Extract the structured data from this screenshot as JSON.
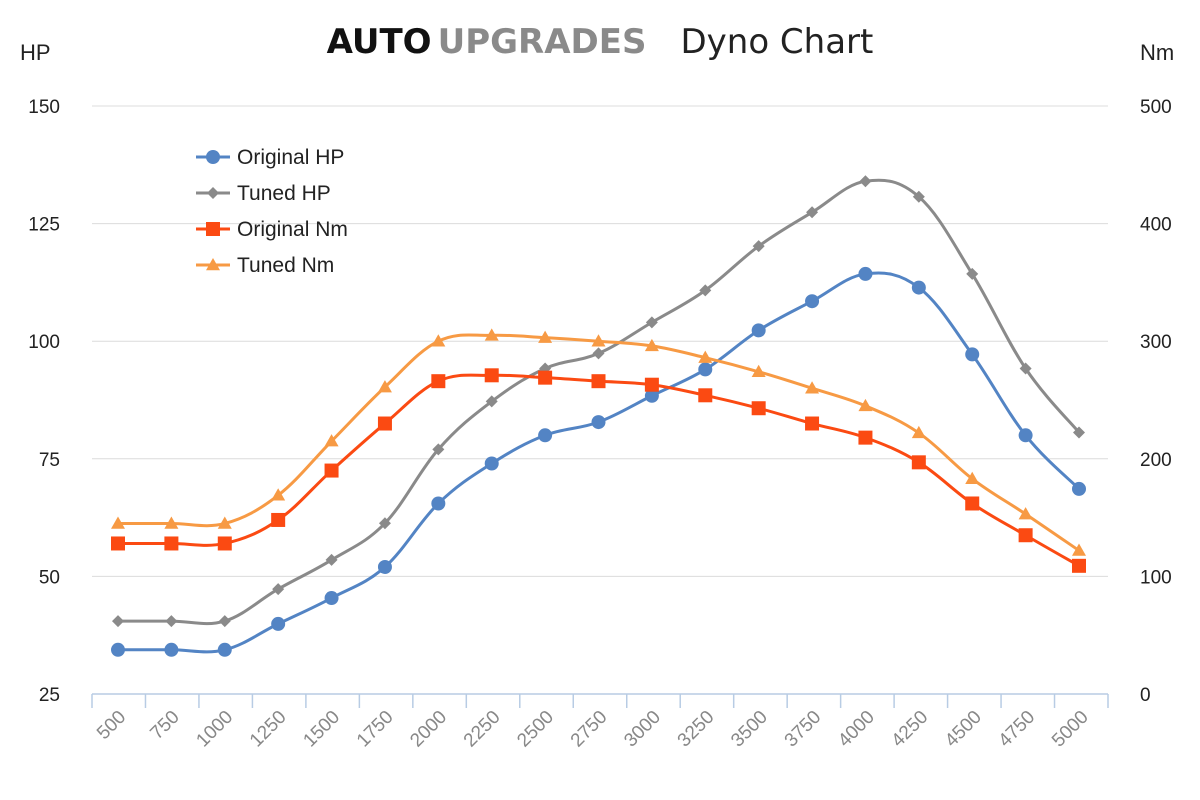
{
  "title": {
    "brand_primary": "AUTO",
    "brand_secondary": "UPGRADES",
    "subtitle": "Dyno Chart"
  },
  "chart_data": {
    "type": "line",
    "y_left_label": "HP",
    "y_right_label": "Nm",
    "y_left_ticks": [
      150,
      125,
      100,
      75,
      50,
      25
    ],
    "y_right_ticks": [
      500,
      400,
      300,
      200,
      100,
      0
    ],
    "y_left_range": [
      25,
      150
    ],
    "y_right_range": [
      0,
      500
    ],
    "x_ticks": [
      "500",
      "750",
      "1000",
      "1250",
      "1500",
      "1750",
      "2000",
      "2250",
      "2500",
      "2750",
      "3000",
      "3250",
      "3500",
      "3750",
      "4000",
      "4250",
      "4500",
      "4750",
      "5000"
    ],
    "grid": "horizontal",
    "legend_position": "top-left",
    "series": [
      {
        "name": "Original HP",
        "axis": "left",
        "color": "#5384c4",
        "marker": "circle",
        "values": [
          34.4,
          34.4,
          34.4,
          39.9,
          45.4,
          52.0,
          65.5,
          74.0,
          80.0,
          82.8,
          88.4,
          94.0,
          102.3,
          108.5,
          114.3,
          111.4,
          97.2,
          80.0,
          68.6
        ]
      },
      {
        "name": "Tuned HP",
        "axis": "left",
        "color": "#8a8a8a",
        "marker": "diamond",
        "values": [
          40.5,
          40.5,
          40.5,
          47.3,
          53.5,
          61.3,
          77.0,
          87.2,
          94.2,
          97.4,
          104.0,
          110.8,
          120.2,
          127.4,
          134.0,
          130.7,
          114.3,
          94.2,
          80.6
        ]
      },
      {
        "name": "Original Nm",
        "axis": "right",
        "color": "#fb4a12",
        "marker": "square",
        "values": [
          128,
          128,
          128,
          148,
          190,
          230,
          266,
          271,
          269,
          266,
          263,
          254,
          243,
          230,
          218,
          197,
          162,
          135,
          109
        ]
      },
      {
        "name": "Tuned Nm",
        "axis": "right",
        "color": "#f79a44",
        "marker": "triangle",
        "values": [
          145,
          145,
          145,
          169,
          215,
          261,
          300,
          305,
          303,
          300,
          296,
          286,
          274,
          260,
          245,
          222,
          183,
          153,
          122
        ]
      }
    ]
  }
}
